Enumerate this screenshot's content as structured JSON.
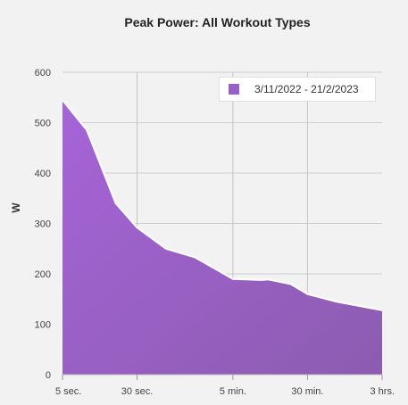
{
  "title": "Peak Power: All Workout Types",
  "chart_data": {
    "type": "area",
    "title": "Peak Power: All Workout Types",
    "ylabel": "W",
    "xlabel": "",
    "ylim": [
      0,
      600
    ],
    "yticks": [
      0,
      100,
      200,
      300,
      400,
      500,
      600
    ],
    "x_scale": "log",
    "x_unit": "seconds",
    "x_ticks": [
      {
        "value": 5,
        "label": "5 sec."
      },
      {
        "value": 30,
        "label": "30 sec."
      },
      {
        "value": 300,
        "label": "5 min."
      },
      {
        "value": 1800,
        "label": "30 min."
      },
      {
        "value": 10800,
        "label": "3 hrs."
      }
    ],
    "vertical_gridlines_at": [
      30,
      300,
      1800
    ],
    "grid": true,
    "legend_position": "top-right",
    "series": [
      {
        "name": "3/11/2022 - 21/2/2023",
        "color": "#9a5fc4",
        "points": [
          [
            5,
            545
          ],
          [
            9,
            485
          ],
          [
            18,
            340
          ],
          [
            30,
            292
          ],
          [
            60,
            250
          ],
          [
            120,
            233
          ],
          [
            300,
            190
          ],
          [
            600,
            188
          ],
          [
            700,
            189
          ],
          [
            1200,
            180
          ],
          [
            1800,
            160
          ],
          [
            3600,
            145
          ],
          [
            10800,
            128
          ]
        ]
      }
    ]
  }
}
